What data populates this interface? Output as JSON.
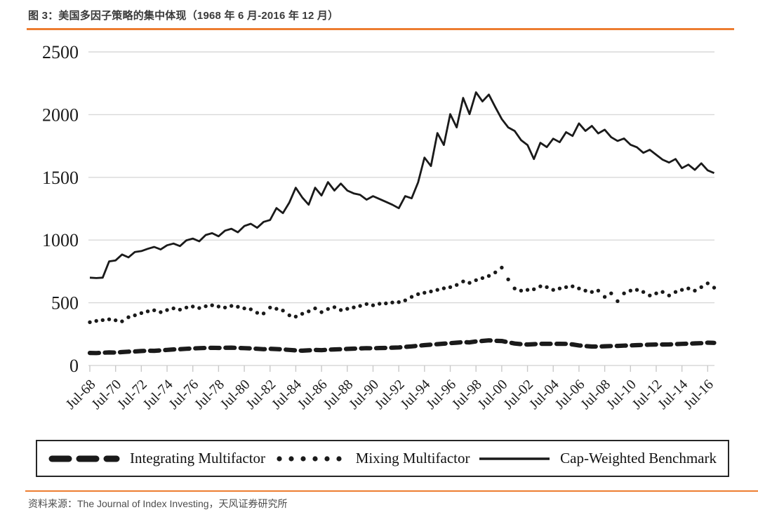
{
  "page": {
    "title": "图 3：美国多因子策略的集中体现（1968 年 6 月-2016 年 12 月）",
    "source_note": "资料来源：The Journal of Index Investing，天风证券研究所",
    "accent_color": "#ED7D31"
  },
  "chart_data": {
    "type": "line",
    "title": "图 3：美国多因子策略的集中体现（1968 年 6 月-2016 年 12 月）",
    "xlabel": "",
    "ylabel": "",
    "x_unit": "decimal year (semi-annual points, Jun 1968 - Dec 2016)",
    "xlim": [
      1968.5,
      2017.0
    ],
    "ylim": [
      0,
      2500
    ],
    "ytick_step": 500,
    "ytick_labels": [
      "0",
      "500",
      "1000",
      "1500",
      "2000",
      "2500"
    ],
    "xtick_labels": [
      "Jul-68",
      "Jul-70",
      "Jul-72",
      "Jul-74",
      "Jul-76",
      "Jul-78",
      "Jul-80",
      "Jul-82",
      "Jul-84",
      "Jul-86",
      "Jul-88",
      "Jul-90",
      "Jul-92",
      "Jul-94",
      "Jul-96",
      "Jul-98",
      "Jul-00",
      "Jul-02",
      "Jul-04",
      "Jul-06",
      "Jul-08",
      "Jul-10",
      "Jul-12",
      "Jul-14",
      "Jul-16"
    ],
    "xtick_positions": [
      1968.5,
      1970.5,
      1972.5,
      1974.5,
      1976.5,
      1978.5,
      1980.5,
      1982.5,
      1984.5,
      1986.5,
      1988.5,
      1990.5,
      1992.5,
      1994.5,
      1996.5,
      1998.5,
      2000.5,
      2002.5,
      2004.5,
      2006.5,
      2008.5,
      2010.5,
      2012.5,
      2014.5,
      2016.5
    ],
    "grid": "horizontal",
    "legend_position": "bottom-box",
    "line_color": "#1a1a1a",
    "gridline_color": "#d8d8d8",
    "x": [
      1968.5,
      1969.0,
      1969.5,
      1970.0,
      1970.5,
      1971.0,
      1971.5,
      1972.0,
      1972.5,
      1973.0,
      1973.5,
      1974.0,
      1974.5,
      1975.0,
      1975.5,
      1976.0,
      1976.5,
      1977.0,
      1977.5,
      1978.0,
      1978.5,
      1979.0,
      1979.5,
      1980.0,
      1980.5,
      1981.0,
      1981.5,
      1982.0,
      1982.5,
      1983.0,
      1983.5,
      1984.0,
      1984.5,
      1985.0,
      1985.5,
      1986.0,
      1986.5,
      1987.0,
      1987.5,
      1988.0,
      1988.5,
      1989.0,
      1989.5,
      1990.0,
      1990.5,
      1991.0,
      1991.5,
      1992.0,
      1992.5,
      1993.0,
      1993.5,
      1994.0,
      1994.5,
      1995.0,
      1995.5,
      1996.0,
      1996.5,
      1997.0,
      1997.5,
      1998.0,
      1998.5,
      1999.0,
      1999.5,
      2000.0,
      2000.5,
      2001.0,
      2001.5,
      2002.0,
      2002.5,
      2003.0,
      2003.5,
      2004.0,
      2004.5,
      2005.0,
      2005.5,
      2006.0,
      2006.5,
      2007.0,
      2007.5,
      2008.0,
      2008.5,
      2009.0,
      2009.5,
      2010.0,
      2010.5,
      2011.0,
      2011.5,
      2012.0,
      2012.5,
      2013.0,
      2013.5,
      2014.0,
      2014.5,
      2015.0,
      2015.5,
      2016.0,
      2016.5,
      2017.0
    ],
    "series": [
      {
        "name": "Integrating Multifactor",
        "line_style": "dashed",
        "color": "#1a1a1a",
        "values": [
          100,
          99,
          102,
          104,
          103,
          107,
          110,
          112,
          115,
          118,
          117,
          120,
          124,
          128,
          130,
          133,
          136,
          138,
          140,
          141,
          140,
          141,
          142,
          140,
          138,
          136,
          133,
          130,
          133,
          131,
          128,
          124,
          120,
          118,
          121,
          124,
          122,
          126,
          128,
          130,
          132,
          134,
          136,
          138,
          137,
          139,
          140,
          142,
          144,
          148,
          152,
          157,
          162,
          166,
          170,
          174,
          178,
          182,
          186,
          184,
          192,
          196,
          200,
          197,
          195,
          185,
          175,
          170,
          167,
          170,
          173,
          173,
          172,
          173,
          172,
          168,
          160,
          155,
          151,
          151,
          153,
          155,
          156,
          158,
          160,
          162,
          164,
          166,
          167,
          167,
          168,
          170,
          172,
          174,
          176,
          178,
          182,
          180
        ]
      },
      {
        "name": "Mixing Multifactor",
        "line_style": "dotted",
        "color": "#1a1a1a",
        "values": [
          345,
          355,
          362,
          368,
          360,
          352,
          385,
          400,
          418,
          432,
          440,
          425,
          442,
          455,
          445,
          462,
          470,
          458,
          472,
          480,
          470,
          462,
          475,
          468,
          455,
          448,
          420,
          415,
          462,
          452,
          438,
          400,
          390,
          412,
          432,
          455,
          425,
          450,
          465,
          442,
          452,
          463,
          475,
          490,
          480,
          492,
          495,
          502,
          505,
          519,
          547,
          569,
          580,
          590,
          603,
          615,
          625,
          642,
          670,
          659,
          680,
          697,
          714,
          742,
          780,
          686,
          614,
          597,
          603,
          608,
          631,
          625,
          603,
          614,
          625,
          631,
          614,
          597,
          586,
          597,
          547,
          575,
          513,
          575,
          597,
          603,
          586,
          558,
          575,
          586,
          558,
          586,
          603,
          614,
          597,
          625,
          655,
          620
        ]
      },
      {
        "name": "Cap-Weighted Benchmark",
        "line_style": "solid",
        "color": "#1a1a1a",
        "values": [
          700,
          697,
          700,
          830,
          838,
          885,
          862,
          905,
          912,
          930,
          945,
          925,
          958,
          972,
          952,
          998,
          1012,
          990,
          1040,
          1055,
          1030,
          1075,
          1090,
          1062,
          1112,
          1130,
          1098,
          1145,
          1160,
          1255,
          1215,
          1300,
          1417,
          1340,
          1282,
          1417,
          1355,
          1462,
          1395,
          1450,
          1395,
          1372,
          1361,
          1322,
          1350,
          1327,
          1305,
          1282,
          1254,
          1350,
          1333,
          1460,
          1657,
          1590,
          1853,
          1758,
          2004,
          1898,
          2133,
          2004,
          2178,
          2105,
          2160,
          2060,
          1965,
          1898,
          1870,
          1797,
          1758,
          1646,
          1775,
          1741,
          1808,
          1780,
          1860,
          1830,
          1930,
          1870,
          1910,
          1850,
          1880,
          1820,
          1790,
          1810,
          1760,
          1740,
          1696,
          1720,
          1680,
          1641,
          1618,
          1646,
          1573,
          1601,
          1560,
          1612,
          1556,
          1534
        ]
      }
    ]
  }
}
